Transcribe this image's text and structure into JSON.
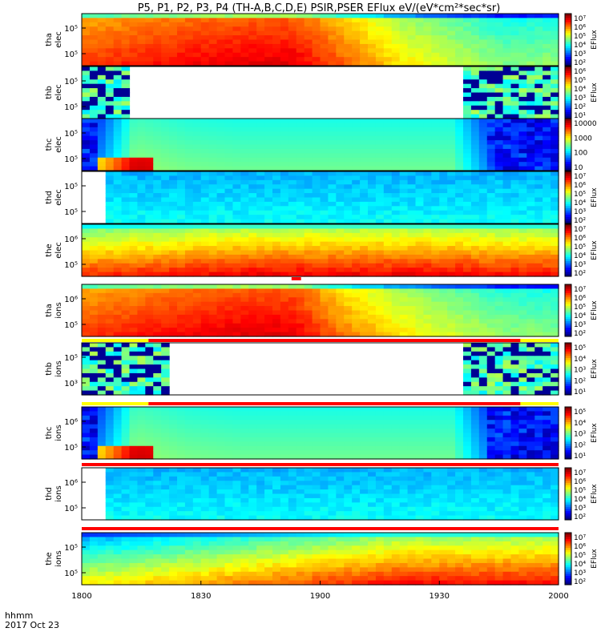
{
  "title": "P5, P1, P2, P3, P4 (TH-A,B,C,D,E) PSIR,PSER EFlux eV/(eV*cm²*sec*sr)",
  "footer": {
    "line1": "hhmm",
    "line2": "2017 Oct 23"
  },
  "x_ticks": [
    "1800",
    "1830",
    "1900",
    "1930",
    "2000"
  ],
  "colors": {
    "jet": [
      "#000080",
      "#0000ff",
      "#0080ff",
      "#00ffff",
      "#80ff80",
      "#ffff00",
      "#ff8000",
      "#ff0000",
      "#800000"
    ],
    "flag_red": "#ff0000",
    "flag_yellow": "#ffff00"
  },
  "chart_data": {
    "type": "heatmap",
    "x_range": [
      "2017-10-23 18:00",
      "2017-10-23 20:00"
    ],
    "panels": [
      {
        "probe": "tha",
        "species": "elec",
        "label1": "tha",
        "label2": "elec",
        "y_tick_labels": [
          "10⁵",
          "10⁵"
        ],
        "cb_label": "EFlux",
        "cb_ticks": [
          "10⁷",
          "10⁶",
          "10⁵",
          "10⁴",
          "10³",
          "10²"
        ],
        "profile": "tha",
        "levels": [
          0.82,
          0.85,
          0.88,
          0.9,
          0.9,
          0.78,
          0.65,
          0.58,
          0.5,
          0.52
        ],
        "data_gaps": []
      },
      {
        "probe": "thb",
        "species": "elec",
        "label1": "thb",
        "label2": "elec",
        "y_tick_labels": [
          "10⁵",
          "10⁵"
        ],
        "cb_label": "EFlux",
        "cb_ticks": [
          "10⁶",
          "10⁵",
          "10⁴",
          "10³",
          "10²",
          "10¹"
        ],
        "profile": "noisy",
        "levels": [
          0.3,
          0.35,
          0.3,
          0.3,
          0.3,
          0.3,
          0.3,
          0.35,
          0.3,
          0.3
        ],
        "data_gaps": [
          [
            9,
            79
          ]
        ]
      },
      {
        "probe": "thc",
        "species": "elec",
        "label1": "thc",
        "label2": "elec",
        "y_tick_labels": [
          "10⁵",
          "10⁵"
        ],
        "cb_label": "",
        "cb_ticks": [
          "10000",
          "1000",
          "100",
          "10"
        ],
        "profile": "thc",
        "levels": [
          0.1,
          0.48,
          0.45,
          0.44,
          0.44,
          0.44,
          0.44,
          0.44,
          0.1,
          0.1
        ],
        "data_gaps": []
      },
      {
        "probe": "thd",
        "species": "elec",
        "label1": "thd",
        "label2": "elec",
        "y_tick_labels": [
          "10⁵",
          "10⁵"
        ],
        "cb_label": "EFlux",
        "cb_ticks": [
          "10⁷",
          "10⁶",
          "10⁵",
          "10⁴",
          "10³",
          "10²"
        ],
        "profile": "thd",
        "levels": [
          0.32,
          0.3,
          0.3,
          0.3,
          0.3,
          0.3,
          0.3,
          0.3,
          0.3,
          0.3
        ],
        "data_gaps": [
          [
            0,
            4
          ]
        ]
      },
      {
        "probe": "the",
        "species": "elec",
        "label1": "the",
        "label2": "elec",
        "y_tick_labels": [
          "10⁶",
          "10⁵"
        ],
        "cb_label": "EFlux",
        "cb_ticks": [
          "10⁷",
          "10⁶",
          "10⁵",
          "10⁴",
          "10³",
          "10²"
        ],
        "profile": "the",
        "levels": [
          0.82,
          0.84,
          0.86,
          0.88,
          0.88,
          0.88,
          0.88,
          0.88,
          0.86,
          0.86
        ],
        "data_gaps": []
      },
      {
        "probe": "tha",
        "species": "ions",
        "label1": "tha",
        "label2": "ions",
        "y_tick_labels": [
          "10⁶",
          "10⁵"
        ],
        "cb_label": "EFlux",
        "cb_ticks": [
          "10⁷",
          "10⁶",
          "10⁵",
          "10⁴",
          "10³",
          "10²"
        ],
        "profile": "tha",
        "levels": [
          0.82,
          0.85,
          0.88,
          0.9,
          0.9,
          0.75,
          0.65,
          0.58,
          0.52,
          0.5
        ],
        "data_gaps": []
      },
      {
        "probe": "thb",
        "species": "ions",
        "label1": "thb",
        "label2": "ions",
        "y_tick_labels": [
          "10⁵",
          "10³"
        ],
        "cb_label": "EFlux",
        "cb_ticks": [
          "10⁵",
          "10⁴",
          "10³",
          "10²",
          "10¹"
        ],
        "profile": "noisy",
        "levels": [
          0.3,
          0.35,
          0.3,
          0.3,
          0.3,
          0.3,
          0.3,
          0.35,
          0.3,
          0.3
        ],
        "data_gaps": [
          [
            17,
            80
          ]
        ]
      },
      {
        "probe": "thc",
        "species": "ions",
        "label1": "thc",
        "label2": "ions",
        "y_tick_labels": [
          "10⁶",
          "10⁵"
        ],
        "cb_label": "EFlux",
        "cb_ticks": [
          "10⁵",
          "10⁴",
          "10³",
          "10²",
          "10¹"
        ],
        "profile": "thc",
        "levels": [
          0.1,
          0.48,
          0.45,
          0.44,
          0.44,
          0.44,
          0.44,
          0.44,
          0.1,
          0.1
        ],
        "data_gaps": []
      },
      {
        "probe": "thd",
        "species": "ions",
        "label1": "thd",
        "label2": "ions",
        "y_tick_labels": [
          "10⁶",
          "10⁵"
        ],
        "cb_label": "EFlux",
        "cb_ticks": [
          "10⁷",
          "10⁶",
          "10⁵",
          "10⁴",
          "10³",
          "10²"
        ],
        "profile": "thd",
        "levels": [
          0.3,
          0.3,
          0.3,
          0.3,
          0.3,
          0.3,
          0.3,
          0.3,
          0.3,
          0.3
        ],
        "data_gaps": [
          [
            0,
            4
          ]
        ]
      },
      {
        "probe": "the",
        "species": "ions",
        "label1": "the",
        "label2": "ions",
        "y_tick_labels": [
          "10⁵",
          "10⁵"
        ],
        "cb_label": "EFlux",
        "cb_ticks": [
          "10⁷",
          "10⁶",
          "10⁵",
          "10⁴",
          "10³",
          "10²"
        ],
        "profile": "the_ion",
        "levels": [
          0.62,
          0.66,
          0.7,
          0.74,
          0.78,
          0.82,
          0.86,
          0.86,
          0.86,
          0.86
        ],
        "data_gaps": []
      }
    ],
    "flag_bars": [
      {
        "after_panel": 4,
        "segments": [
          {
            "from": 0.44,
            "to": 0.46,
            "color": "red"
          }
        ]
      },
      {
        "after_panel": 5,
        "segments": [
          {
            "from": 0.0,
            "to": 0.14,
            "color": "yellow"
          },
          {
            "from": 0.14,
            "to": 0.92,
            "color": "red"
          },
          {
            "from": 0.92,
            "to": 1.0,
            "color": "yellow"
          }
        ]
      },
      {
        "after_panel": 6,
        "segments": [
          {
            "from": 0.0,
            "to": 0.14,
            "color": "yellow"
          },
          {
            "from": 0.14,
            "to": 0.92,
            "color": "red"
          },
          {
            "from": 0.92,
            "to": 1.0,
            "color": "yellow"
          }
        ]
      },
      {
        "after_panel": 7,
        "segments": [
          {
            "from": 0.0,
            "to": 1.0,
            "color": "red"
          }
        ]
      },
      {
        "after_panel": 8,
        "segments": [
          {
            "from": 0.0,
            "to": 1.0,
            "color": "red"
          }
        ]
      }
    ]
  }
}
